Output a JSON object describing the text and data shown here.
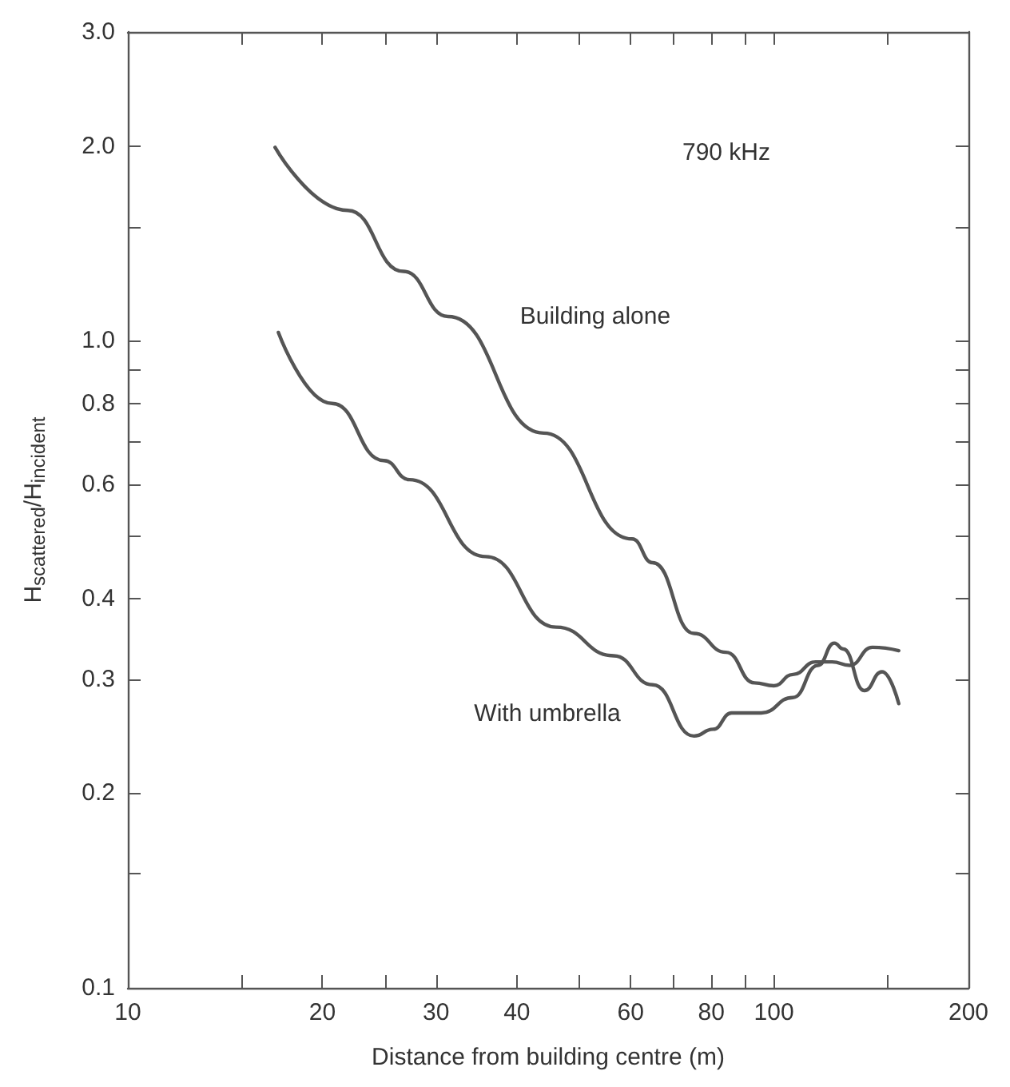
{
  "chart_data": {
    "type": "line",
    "xlabel": "Distance from building centre (m)",
    "ylabel": "H$_{scattered}$/H$_{incident}$",
    "log": "xy",
    "xlim": [
      10,
      200
    ],
    "ylim": [
      0.1,
      3
    ],
    "xticks": [
      10,
      {
        "value": 15,
        "label": null
      },
      20,
      {
        "value": 25,
        "label": null
      },
      30,
      40,
      {
        "value": 50,
        "label": null
      },
      60,
      {
        "value": 70,
        "label": null
      },
      80,
      {
        "value": 90,
        "label": null
      },
      100,
      {
        "value": 150,
        "label": null
      },
      200
    ],
    "yticks": [
      0.1,
      {
        "value": 0.15,
        "label": null
      },
      0.2,
      0.3,
      0.4,
      {
        "value": 0.5,
        "label": null
      },
      0.6,
      {
        "value": 0.7,
        "label": null
      },
      0.8,
      {
        "value": 0.9,
        "label": null
      },
      {
        "value": 1,
        "label": "1.0"
      },
      {
        "value": 1.5,
        "label": null
      },
      {
        "value": 2,
        "label": "2.0"
      },
      {
        "value": 3,
        "label": "3.0"
      }
    ],
    "annotations": [
      "790 kHz"
    ],
    "series": [
      {
        "name": "Building alone",
        "color": "#555555",
        "x": [
          16.9,
          21.9,
          26.7,
          31.3,
          44,
          60.3,
          64.9,
          75.2,
          84.3,
          93.3,
          100,
          107,
          116,
          123,
          131,
          142,
          156
        ],
        "values": [
          1.99,
          1.59,
          1.28,
          1.09,
          0.72,
          0.494,
          0.454,
          0.353,
          0.33,
          0.296,
          0.293,
          0.305,
          0.319,
          0.319,
          0.315,
          0.336,
          0.332
        ]
      },
      {
        "name": "With umbrella",
        "color": "#555555",
        "x": [
          17.1,
          20.7,
          24.9,
          27.3,
          35.8,
          46,
          56.5,
          64.9,
          75.2,
          80.5,
          86,
          95.6,
          107,
          117,
          124,
          128,
          138,
          147,
          156
        ],
        "values": [
          1.03,
          0.8,
          0.653,
          0.61,
          0.464,
          0.361,
          0.326,
          0.294,
          0.245,
          0.251,
          0.266,
          0.266,
          0.281,
          0.315,
          0.341,
          0.334,
          0.288,
          0.308,
          0.275
        ]
      }
    ]
  }
}
